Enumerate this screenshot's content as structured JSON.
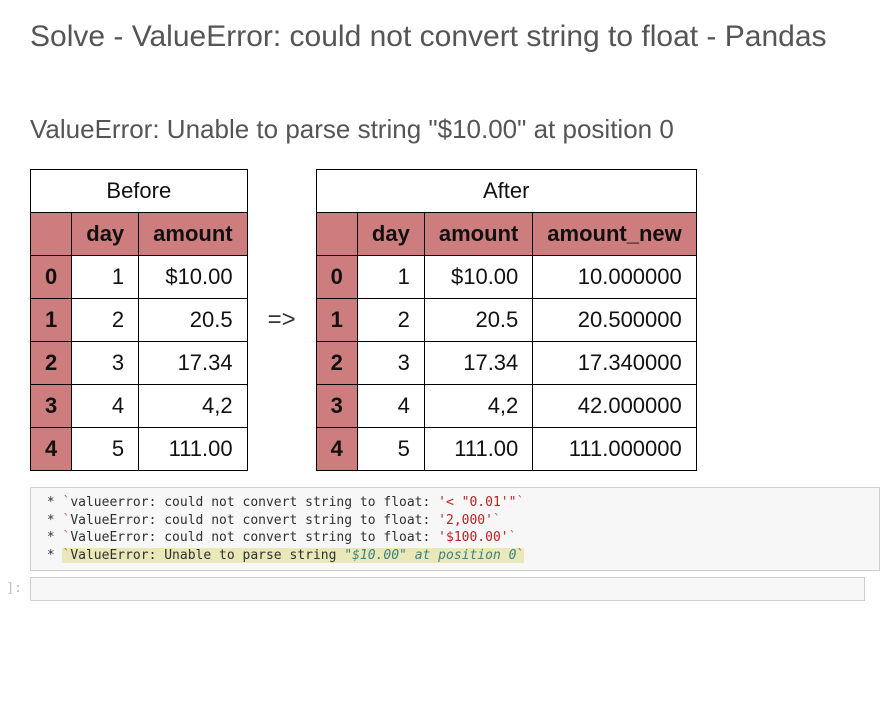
{
  "title": "Solve - ValueError: could not convert string to float - Pandas",
  "subtitle": "ValueError: Unable to parse string \"$10.00\" at position 0",
  "arrow": "=>",
  "before": {
    "caption": "Before",
    "columns": [
      "day",
      "amount"
    ],
    "index": [
      "0",
      "1",
      "2",
      "3",
      "4"
    ],
    "rows": [
      [
        "1",
        "$10.00"
      ],
      [
        "2",
        "20.5"
      ],
      [
        "3",
        "17.34"
      ],
      [
        "4",
        "4,2"
      ],
      [
        "5",
        "111.00"
      ]
    ]
  },
  "after": {
    "caption": "After",
    "columns": [
      "day",
      "amount",
      "amount_new"
    ],
    "index": [
      "0",
      "1",
      "2",
      "3",
      "4"
    ],
    "rows": [
      [
        "1",
        "$10.00",
        "10.000000"
      ],
      [
        "2",
        "20.5",
        "20.500000"
      ],
      [
        "3",
        "17.34",
        "17.340000"
      ],
      [
        "4",
        "4,2",
        "42.000000"
      ],
      [
        "5",
        "111.00",
        "111.000000"
      ]
    ]
  },
  "code_lines": [
    {
      "bullet": " * ",
      "prefix": "`",
      "body": "valueerror: could not convert string to float: ",
      "tail": "'< \"0.01'\"",
      "suffix": "`",
      "tail_class": "str",
      "hi": false
    },
    {
      "bullet": " * ",
      "prefix": "`",
      "body": "ValueError: could not convert string to float: ",
      "tail": "'2,000'",
      "suffix": "`",
      "tail_class": "str",
      "hi": false
    },
    {
      "bullet": " * ",
      "prefix": "`",
      "body": "ValueError: could not convert string to float: ",
      "tail": "'$100.00'",
      "suffix": "`",
      "tail_class": "str",
      "hi": false
    },
    {
      "bullet": " * ",
      "prefix": "`",
      "body": "ValueError: Unable to parse string ",
      "tail": "\"$10.00\" at position 0",
      "suffix": "`",
      "tail_class": "cm",
      "hi": true
    }
  ],
  "prompt": "[ ]:",
  "colors": {
    "index_bg": "#cd7d7d",
    "border": "#000000",
    "code_bg": "#f7f7f7",
    "code_border": "#cfcfcf",
    "highlight_bg": "#e8e8b8"
  }
}
